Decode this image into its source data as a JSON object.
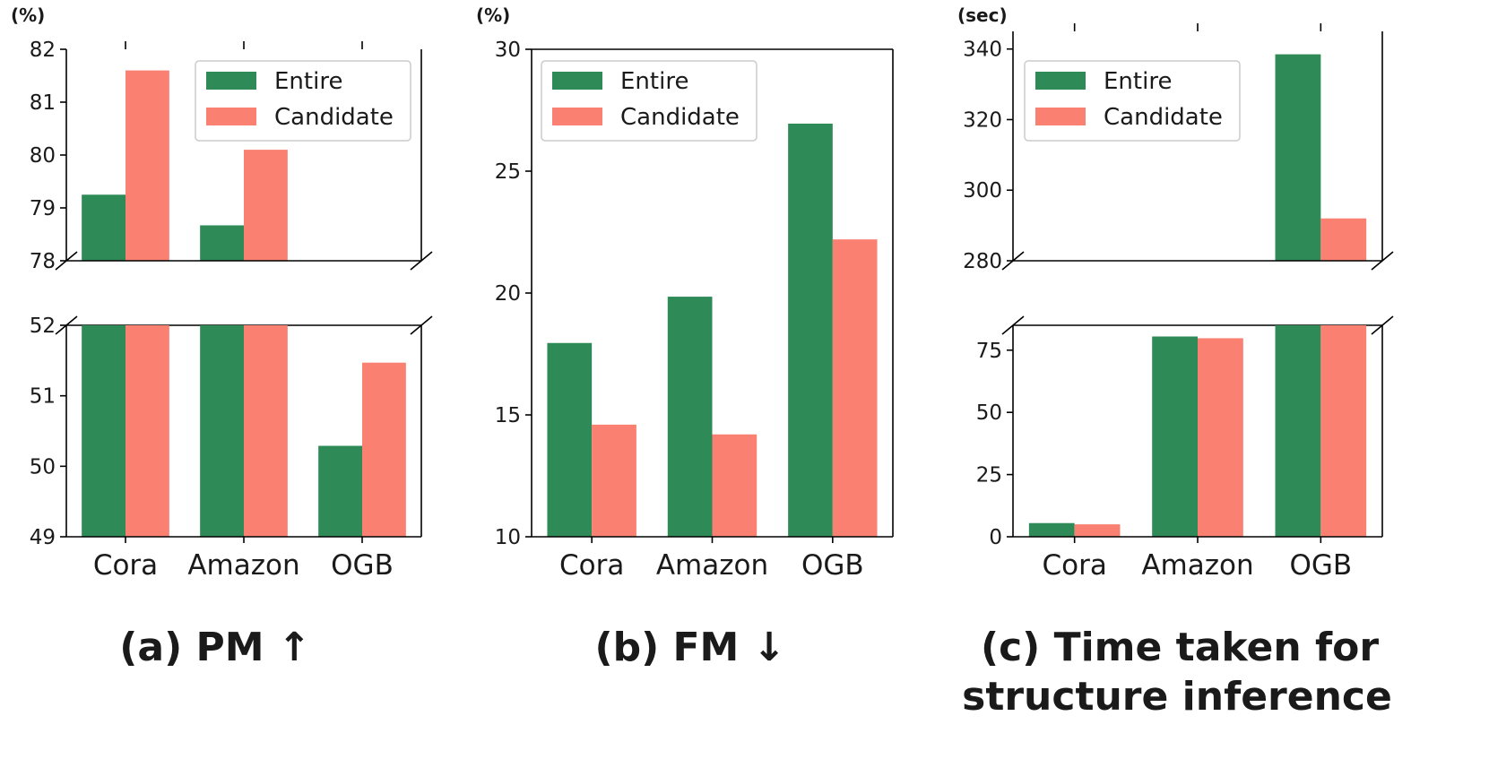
{
  "colors": {
    "entire": "#2e8b57",
    "candidate": "#fa8072"
  },
  "chart_data": [
    {
      "type": "bar",
      "title": "(a) PM ↑",
      "ylabel": "(%)",
      "categories": [
        "Cora",
        "Amazon",
        "OGB"
      ],
      "series": [
        {
          "name": "Entire",
          "values": [
            79.25,
            78.67,
            50.29
          ]
        },
        {
          "name": "Candidate",
          "values": [
            81.6,
            80.1,
            51.47
          ]
        }
      ],
      "broken_axis": {
        "upper": {
          "ylim": [
            78,
            82
          ],
          "ticks": [
            "78",
            "79",
            "80",
            "81",
            "82"
          ]
        },
        "lower": {
          "ylim": [
            49,
            52
          ],
          "ticks": [
            "49",
            "50",
            "51",
            "52"
          ]
        }
      },
      "legend": "top-right"
    },
    {
      "type": "bar",
      "title": "(b) FM ↓",
      "ylabel": "(%)",
      "categories": [
        "Cora",
        "Amazon",
        "OGB"
      ],
      "series": [
        {
          "name": "Entire",
          "values": [
            17.95,
            19.85,
            26.95
          ]
        },
        {
          "name": "Candidate",
          "values": [
            14.6,
            14.2,
            22.2
          ]
        }
      ],
      "ylim": [
        10,
        30
      ],
      "ticks": [
        "10",
        "15",
        "20",
        "25",
        "30"
      ],
      "legend": "top-left"
    },
    {
      "type": "bar",
      "title_lines": [
        "(c) Time taken for",
        "structure inference"
      ],
      "ylabel": "(sec)",
      "categories": [
        "Cora",
        "Amazon",
        "OGB"
      ],
      "series": [
        {
          "name": "Entire",
          "values": [
            5.5,
            80.5,
            338.5
          ]
        },
        {
          "name": "Candidate",
          "values": [
            5.0,
            79.8,
            292.0
          ]
        }
      ],
      "broken_axis": {
        "upper": {
          "ylim": [
            280,
            345
          ],
          "ticks": [
            "280",
            "300",
            "320",
            "340"
          ]
        },
        "lower": {
          "ylim": [
            0,
            85
          ],
          "ticks": [
            "0",
            "25",
            "50",
            "75"
          ]
        }
      },
      "legend": "top-left"
    }
  ]
}
